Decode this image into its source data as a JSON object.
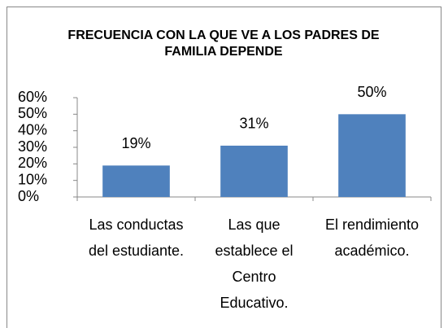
{
  "chart_data": {
    "type": "bar",
    "title": "FRECUENCIA CON LA QUE VE A LOS PADRES DE FAMILIA DEPENDE",
    "categories": [
      "Las conductas del estudiante.",
      "Las que establece el Centro Educativo.",
      "El rendimiento académico."
    ],
    "values": [
      19,
      31,
      50
    ],
    "value_labels": [
      "19%",
      "31%",
      "50%"
    ],
    "color": "#4f81bd",
    "ylim": [
      0,
      60
    ],
    "yticks": [
      {
        "value": 0,
        "label": "0%"
      },
      {
        "value": 10,
        "label": "10%"
      },
      {
        "value": 20,
        "label": "20%"
      },
      {
        "value": 30,
        "label": "30%"
      },
      {
        "value": 40,
        "label": "40%"
      },
      {
        "value": 50,
        "label": "50%"
      },
      {
        "value": 60,
        "label": "60%"
      }
    ],
    "grid": false
  }
}
